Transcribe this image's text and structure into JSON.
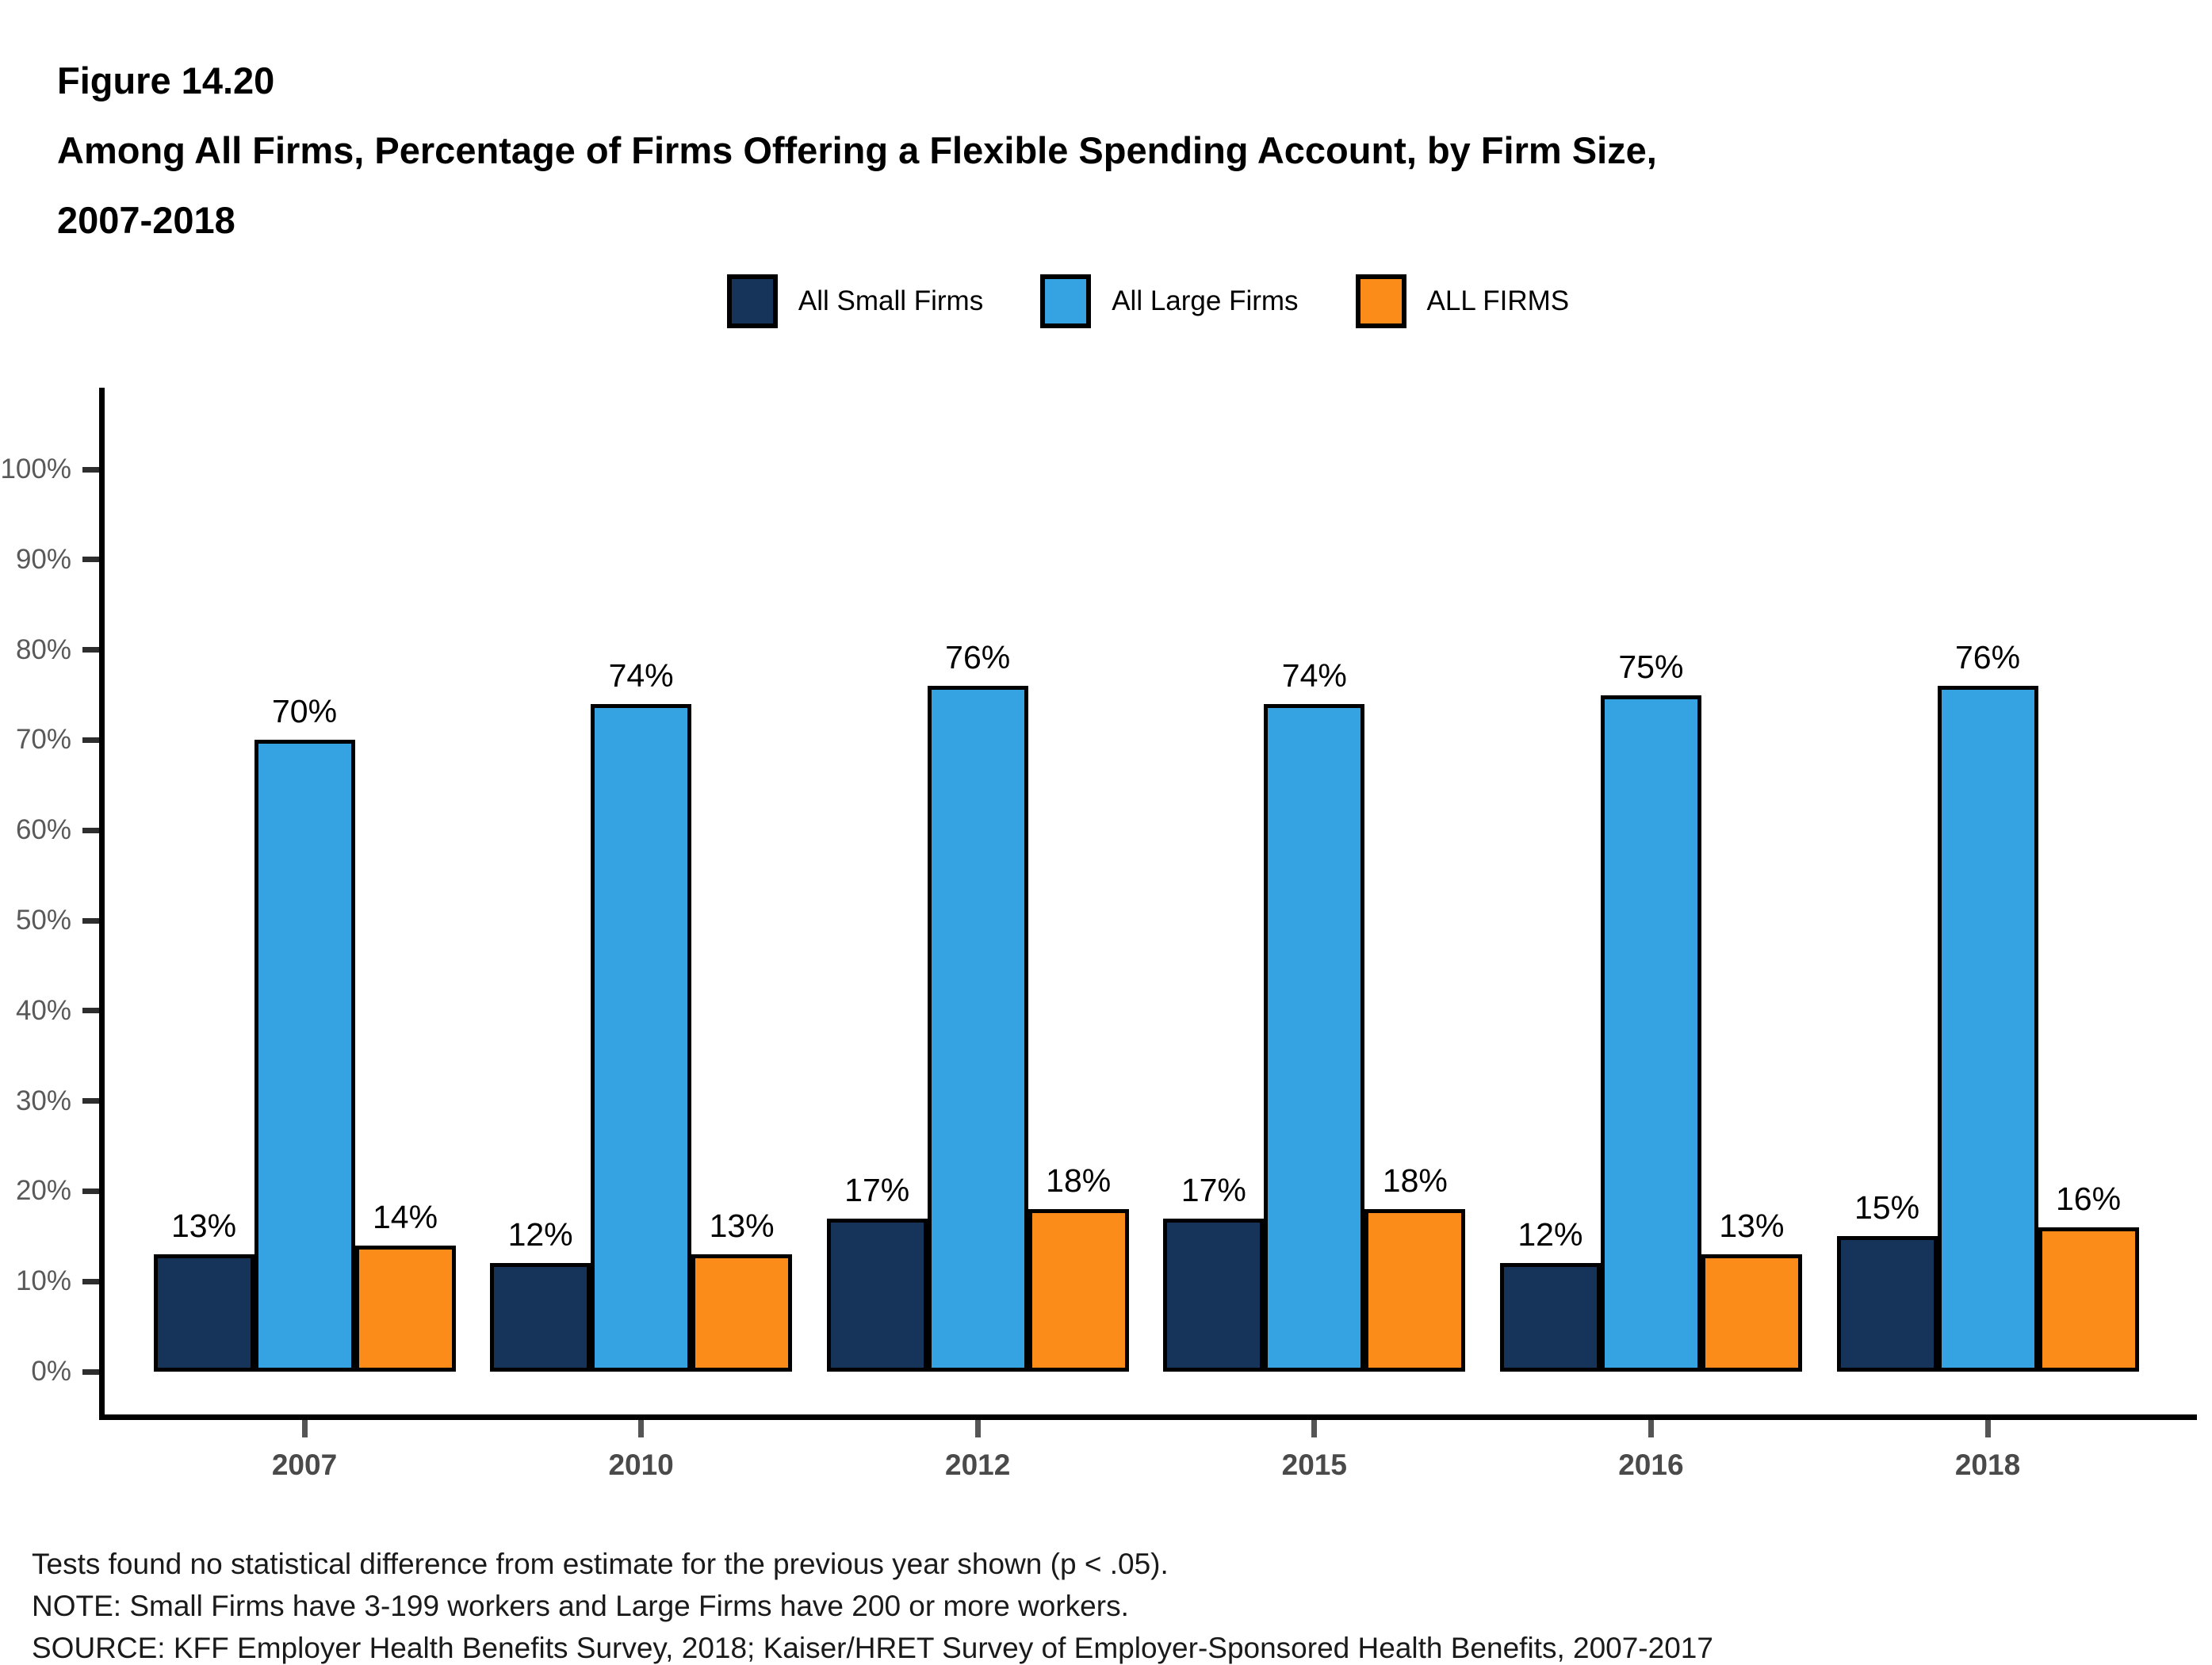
{
  "figure": {
    "label": "Figure 14.20",
    "title_lines": [
      "Among All Firms, Percentage of Firms Offering a Flexible Spending Account, by Firm Size,",
      "2007-2018"
    ]
  },
  "chart_data": {
    "type": "bar",
    "title": "Among All Firms, Percentage of Firms Offering a Flexible Spending Account, by Firm Size, 2007-2018",
    "xlabel": "",
    "ylabel": "",
    "ylim": [
      0,
      100
    ],
    "grid": false,
    "legend_position": "top",
    "categories": [
      "2007",
      "2010",
      "2012",
      "2015",
      "2016",
      "2018"
    ],
    "series": [
      {
        "name": "All Small Firms",
        "color": "#16345A",
        "values": [
          13,
          12,
          17,
          17,
          12,
          15
        ]
      },
      {
        "name": "All Large Firms",
        "color": "#35A3E2",
        "values": [
          70,
          74,
          76,
          74,
          75,
          76
        ]
      },
      {
        "name": "ALL FIRMS",
        "color": "#FB8C1A",
        "values": [
          14,
          13,
          18,
          18,
          13,
          16
        ]
      }
    ],
    "value_label_suffix": "%",
    "y_ticks": [
      "0%",
      "10%",
      "20%",
      "30%",
      "40%",
      "50%",
      "60%",
      "70%",
      "80%",
      "90%",
      "100%"
    ]
  },
  "footer": {
    "lines": [
      "Tests found no statistical difference from estimate for the previous year shown (p < .05).",
      "NOTE: Small Firms have 3-199 workers and Large Firms have 200 or more workers.",
      "SOURCE: KFF Employer Health Benefits Survey, 2018; Kaiser/HRET Survey of Employer-Sponsored Health Benefits, 2007-2017"
    ]
  }
}
